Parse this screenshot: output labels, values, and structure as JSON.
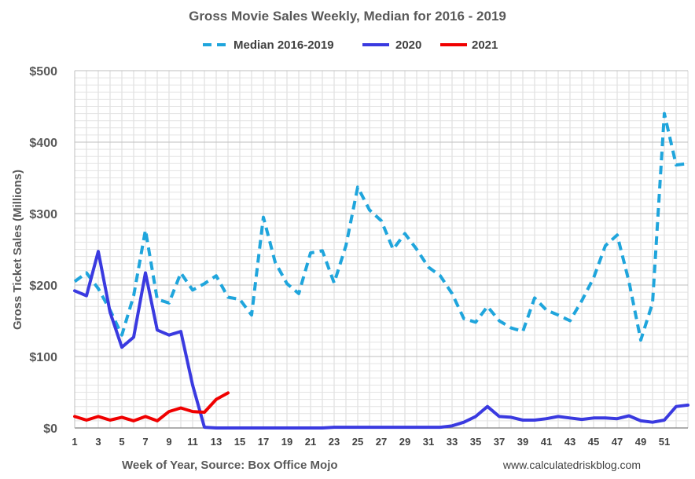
{
  "chart_data": {
    "type": "line",
    "title": "Gross Movie Sales Weekly, Median for 2016 - 2019",
    "xlabel": "Week of Year, Source: Box Office Mojo",
    "ylabel": "Gross Ticket Sales (Millions)",
    "source_note": "www.calculatedriskblog.com",
    "xlim": [
      1,
      53
    ],
    "ylim": [
      0,
      500
    ],
    "yticks": [
      0,
      100,
      200,
      300,
      400,
      500
    ],
    "ytick_labels": [
      "$0",
      "$100",
      "$200",
      "$300",
      "$400",
      "$500"
    ],
    "xticks": [
      1,
      3,
      5,
      7,
      9,
      11,
      13,
      15,
      17,
      19,
      21,
      23,
      25,
      27,
      29,
      31,
      33,
      35,
      37,
      39,
      41,
      43,
      45,
      47,
      49,
      51
    ],
    "xtick_labels": [
      "1",
      "3",
      "5",
      "7",
      "9",
      "11",
      "13",
      "15",
      "17",
      "19",
      "21",
      "23",
      "25",
      "27",
      "29",
      "31",
      "33",
      "35",
      "37",
      "39",
      "41",
      "43",
      "45",
      "47",
      "49",
      "51"
    ],
    "grid": true,
    "legend_position": "top",
    "series": [
      {
        "name": "Median 2016-2019",
        "color": "#1FA5DC",
        "style": "dashed",
        "x": [
          1,
          2,
          3,
          4,
          5,
          6,
          7,
          8,
          9,
          10,
          11,
          12,
          13,
          14,
          15,
          16,
          17,
          18,
          19,
          20,
          21,
          22,
          23,
          24,
          25,
          26,
          27,
          28,
          29,
          30,
          31,
          32,
          33,
          34,
          35,
          36,
          37,
          38,
          39,
          40,
          41,
          42,
          43,
          44,
          45,
          46,
          47,
          48,
          49,
          50,
          51,
          52,
          53
        ],
        "values": [
          205,
          217,
          195,
          165,
          130,
          185,
          277,
          180,
          175,
          217,
          193,
          202,
          213,
          183,
          180,
          158,
          295,
          232,
          202,
          188,
          245,
          248,
          203,
          255,
          337,
          305,
          290,
          250,
          272,
          250,
          225,
          213,
          188,
          153,
          148,
          170,
          150,
          140,
          135,
          182,
          165,
          158,
          150,
          178,
          210,
          255,
          270,
          205,
          123,
          175,
          440,
          368,
          370
        ]
      },
      {
        "name": "2020",
        "color": "#3A3AE0",
        "style": "solid",
        "x": [
          1,
          2,
          3,
          4,
          5,
          6,
          7,
          8,
          9,
          10,
          11,
          12,
          13,
          14,
          15,
          16,
          17,
          18,
          19,
          20,
          21,
          22,
          23,
          24,
          25,
          26,
          27,
          28,
          29,
          30,
          31,
          32,
          33,
          34,
          35,
          36,
          37,
          38,
          39,
          40,
          41,
          42,
          43,
          44,
          45,
          46,
          47,
          48,
          49,
          50,
          51,
          52,
          53
        ],
        "values": [
          192,
          185,
          247,
          162,
          113,
          127,
          217,
          137,
          130,
          135,
          60,
          1,
          0,
          0,
          0,
          0,
          0,
          0,
          0,
          0,
          0,
          0,
          1,
          1,
          1,
          1,
          1,
          1,
          1,
          1,
          1,
          1,
          3,
          8,
          16,
          30,
          16,
          15,
          11,
          11,
          13,
          16,
          14,
          12,
          14,
          14,
          13,
          17,
          10,
          8,
          11,
          30,
          32
        ]
      },
      {
        "name": "2021",
        "color": "#F00000",
        "style": "solid",
        "x": [
          1,
          2,
          3,
          4,
          5,
          6,
          7,
          8,
          9,
          10,
          11,
          12,
          13,
          14
        ],
        "values": [
          16,
          11,
          16,
          11,
          15,
          10,
          16,
          10,
          23,
          28,
          23,
          22,
          40,
          49
        ]
      }
    ]
  }
}
